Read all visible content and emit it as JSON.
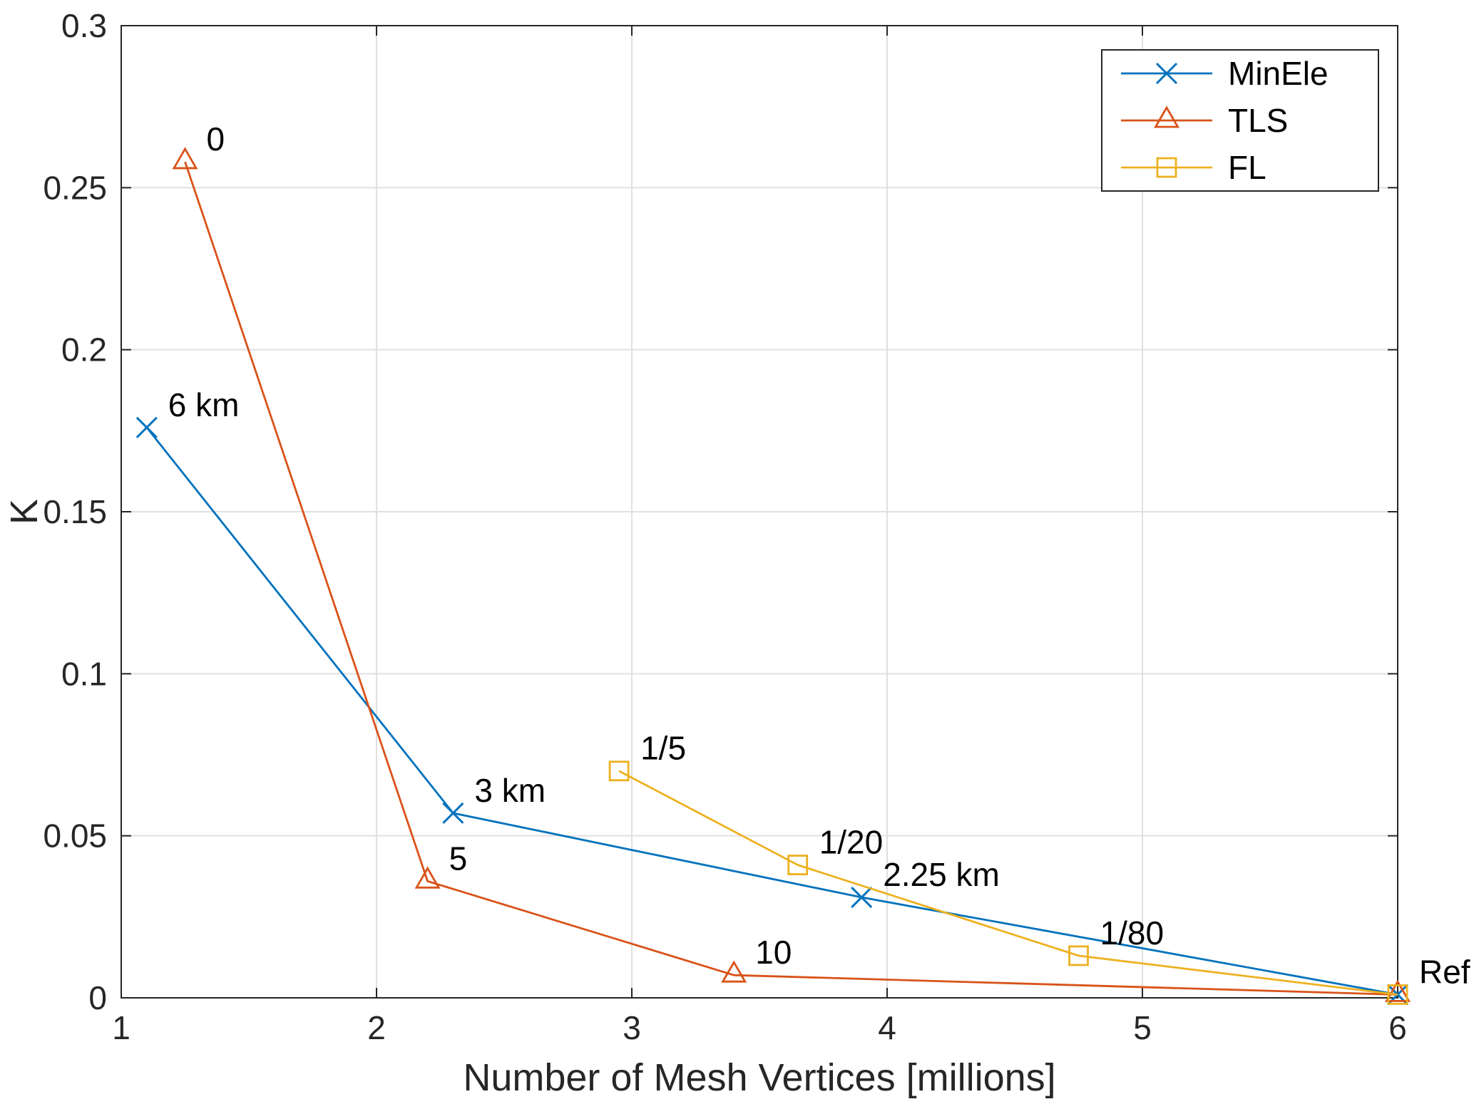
{
  "chart_data": {
    "type": "line",
    "title": "",
    "xlabel": "Number of Mesh Vertices [millions]",
    "ylabel": "K",
    "xlim": [
      1,
      6
    ],
    "ylim": [
      0,
      0.3
    ],
    "xticks": [
      1,
      2,
      3,
      4,
      5,
      6
    ],
    "xtick_labels": [
      "1",
      "2",
      "3",
      "4",
      "5",
      "6"
    ],
    "yticks": [
      0,
      0.05,
      0.1,
      0.15,
      0.2,
      0.25,
      0.3
    ],
    "ytick_labels": [
      "0",
      "0.05",
      "0.1",
      "0.15",
      "0.2",
      "0.25",
      "0.3"
    ],
    "grid": true,
    "axis_color": "#262626",
    "grid_color": "#e0e0e0",
    "annotation_color": "#000000",
    "legend": {
      "position": "top-right",
      "entries": [
        "MinEle",
        "TLS",
        "FL"
      ]
    },
    "series": [
      {
        "name": "MinEle",
        "color": "#0072BD",
        "marker": "x",
        "points": [
          {
            "x": 1.1,
            "y": 0.176,
            "label": "6 km"
          },
          {
            "x": 2.3,
            "y": 0.057,
            "label": "3 km"
          },
          {
            "x": 3.9,
            "y": 0.031,
            "label": "2.25 km"
          },
          {
            "x": 6.0,
            "y": 0.001,
            "label": "Ref"
          }
        ]
      },
      {
        "name": "TLS",
        "color": "#D95319",
        "marker": "triangle",
        "points": [
          {
            "x": 1.25,
            "y": 0.258,
            "label": "0"
          },
          {
            "x": 2.2,
            "y": 0.036,
            "label": "5"
          },
          {
            "x": 3.4,
            "y": 0.007,
            "label": "10"
          },
          {
            "x": 6.0,
            "y": 0.001,
            "label": ""
          }
        ]
      },
      {
        "name": "FL",
        "color": "#EDB120",
        "marker": "square",
        "points": [
          {
            "x": 2.95,
            "y": 0.07,
            "label": "1/5"
          },
          {
            "x": 3.65,
            "y": 0.041,
            "label": "1/20"
          },
          {
            "x": 4.75,
            "y": 0.013,
            "label": "1/80"
          },
          {
            "x": 6.0,
            "y": 0.001,
            "label": ""
          }
        ]
      }
    ]
  }
}
